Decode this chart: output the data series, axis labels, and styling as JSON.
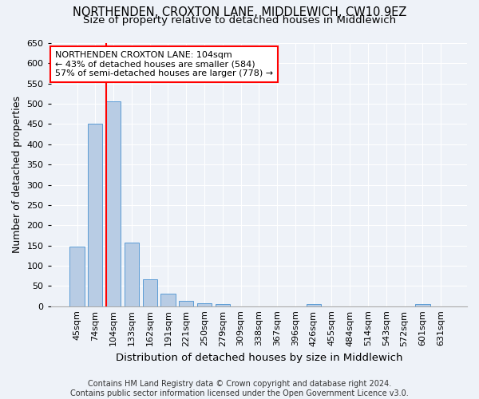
{
  "title1": "NORTHENDEN, CROXTON LANE, MIDDLEWICH, CW10 9EZ",
  "title2": "Size of property relative to detached houses in Middlewich",
  "xlabel": "Distribution of detached houses by size in Middlewich",
  "ylabel": "Number of detached properties",
  "categories": [
    "45sqm",
    "74sqm",
    "104sqm",
    "133sqm",
    "162sqm",
    "191sqm",
    "221sqm",
    "250sqm",
    "279sqm",
    "309sqm",
    "338sqm",
    "367sqm",
    "396sqm",
    "426sqm",
    "455sqm",
    "484sqm",
    "514sqm",
    "543sqm",
    "572sqm",
    "601sqm",
    "631sqm"
  ],
  "values": [
    147,
    450,
    507,
    158,
    67,
    30,
    14,
    8,
    5,
    0,
    0,
    0,
    0,
    5,
    0,
    0,
    0,
    0,
    0,
    5,
    0
  ],
  "bar_color": "#b8cce4",
  "bar_edge_color": "#5b9bd5",
  "vline_color": "red",
  "annotation_text": "NORTHENDEN CROXTON LANE: 104sqm\n← 43% of detached houses are smaller (584)\n57% of semi-detached houses are larger (778) →",
  "annotation_box_color": "white",
  "annotation_box_edge_color": "red",
  "ylim": [
    0,
    650
  ],
  "yticks": [
    0,
    50,
    100,
    150,
    200,
    250,
    300,
    350,
    400,
    450,
    500,
    550,
    600,
    650
  ],
  "footer": "Contains HM Land Registry data © Crown copyright and database right 2024.\nContains public sector information licensed under the Open Government Licence v3.0.",
  "background_color": "#eef2f8",
  "grid_color": "white",
  "title_fontsize": 10.5,
  "subtitle_fontsize": 9.5,
  "axis_label_fontsize": 9,
  "tick_fontsize": 8,
  "footer_fontsize": 7,
  "annotation_fontsize": 8
}
